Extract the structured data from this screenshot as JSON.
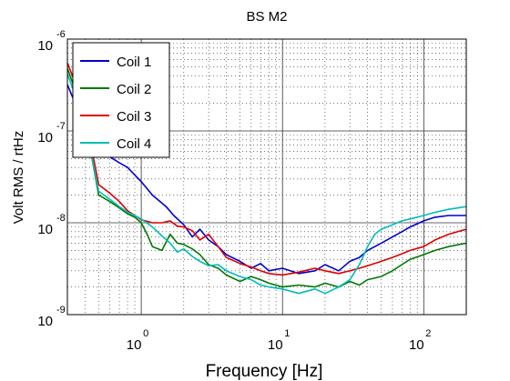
{
  "chart_data": {
    "type": "line",
    "title": "BS M2",
    "xlabel": "Frequency [Hz]",
    "ylabel": "Volt RMS / rtHz",
    "x_scale": "log",
    "y_scale": "log",
    "xlim": [
      0.3,
      200
    ],
    "ylim": [
      1e-09,
      1e-06
    ],
    "x_ticks": [
      {
        "value": 1,
        "base": "10",
        "exp": "0"
      },
      {
        "value": 10,
        "base": "10",
        "exp": "1"
      },
      {
        "value": 100,
        "base": "10",
        "exp": "2"
      }
    ],
    "y_ticks": [
      {
        "value": 1e-09,
        "base": "10",
        "exp": "-9"
      },
      {
        "value": 1e-08,
        "base": "10",
        "exp": "-8"
      },
      {
        "value": 1e-07,
        "base": "10",
        "exp": "-7"
      },
      {
        "value": 1e-06,
        "base": "10",
        "exp": "-6"
      }
    ],
    "grid": true,
    "minor_grid": true,
    "legend_position": "top-left",
    "series": [
      {
        "name": "Coil 1",
        "color": "#0000cc",
        "points": [
          [
            0.3,
            3.2e-07
          ],
          [
            0.35,
            1.8e-07
          ],
          [
            0.4,
            1.1e-07
          ],
          [
            0.5,
            7e-08
          ],
          [
            0.6,
            5.2e-08
          ],
          [
            0.7,
            4.5e-08
          ],
          [
            0.8,
            4e-08
          ],
          [
            1.0,
            2.8e-08
          ],
          [
            1.2,
            2e-08
          ],
          [
            1.5,
            1.5e-08
          ],
          [
            1.7,
            1.2e-08
          ],
          [
            2.0,
            9.5e-09
          ],
          [
            2.3,
            7e-09
          ],
          [
            2.6,
            8.5e-09
          ],
          [
            3.0,
            6.5e-09
          ],
          [
            3.5,
            5.5e-09
          ],
          [
            4,
            4.5e-09
          ],
          [
            5,
            3.8e-09
          ],
          [
            6,
            3.2e-09
          ],
          [
            7,
            3.6e-09
          ],
          [
            8,
            3e-09
          ],
          [
            10,
            3.2e-09
          ],
          [
            13,
            2.8e-09
          ],
          [
            17,
            3e-09
          ],
          [
            20,
            3.5e-09
          ],
          [
            25,
            3e-09
          ],
          [
            30,
            3.8e-09
          ],
          [
            35,
            4.2e-09
          ],
          [
            40,
            5e-09
          ],
          [
            50,
            6e-09
          ],
          [
            60,
            7e-09
          ],
          [
            70,
            8e-09
          ],
          [
            80,
            9e-09
          ],
          [
            100,
            1.05e-08
          ],
          [
            120,
            1.15e-08
          ],
          [
            150,
            1.2e-08
          ],
          [
            200,
            1.2e-08
          ]
        ]
      },
      {
        "name": "Coil 2",
        "color": "#007700",
        "points": [
          [
            0.3,
            4.8e-07
          ],
          [
            0.35,
            2.5e-07
          ],
          [
            0.4,
            1.3e-07
          ],
          [
            0.5,
            2e-08
          ],
          [
            0.6,
            1.7e-08
          ],
          [
            0.7,
            1.45e-08
          ],
          [
            0.8,
            1.25e-08
          ],
          [
            0.9,
            1.15e-08
          ],
          [
            1.0,
            1e-08
          ],
          [
            1.1,
            7.5e-09
          ],
          [
            1.2,
            5.5e-09
          ],
          [
            1.4,
            5e-09
          ],
          [
            1.6,
            7.5e-09
          ],
          [
            1.8,
            6e-09
          ],
          [
            2.0,
            5.8e-09
          ],
          [
            2.3,
            5.2e-09
          ],
          [
            2.6,
            4.5e-09
          ],
          [
            3.0,
            3.5e-09
          ],
          [
            3.5,
            3.2e-09
          ],
          [
            4,
            2.7e-09
          ],
          [
            5,
            2.3e-09
          ],
          [
            6,
            2.6e-09
          ],
          [
            7,
            2.4e-09
          ],
          [
            8,
            2.2e-09
          ],
          [
            10,
            2e-09
          ],
          [
            13,
            2.1e-09
          ],
          [
            17,
            2e-09
          ],
          [
            20,
            2.2e-09
          ],
          [
            25,
            2e-09
          ],
          [
            30,
            2.3e-09
          ],
          [
            35,
            2.1e-09
          ],
          [
            40,
            2.4e-09
          ],
          [
            50,
            2.6e-09
          ],
          [
            60,
            3e-09
          ],
          [
            70,
            3.5e-09
          ],
          [
            80,
            4e-09
          ],
          [
            100,
            4.5e-09
          ],
          [
            120,
            5e-09
          ],
          [
            150,
            5.5e-09
          ],
          [
            200,
            6e-09
          ]
        ]
      },
      {
        "name": "Coil 3",
        "color": "#dd0000",
        "points": [
          [
            0.3,
            5.5e-07
          ],
          [
            0.35,
            3e-07
          ],
          [
            0.4,
            1.5e-07
          ],
          [
            0.5,
            2.6e-08
          ],
          [
            0.6,
            2.1e-08
          ],
          [
            0.7,
            1.7e-08
          ],
          [
            0.8,
            1.35e-08
          ],
          [
            0.9,
            1.2e-08
          ],
          [
            1.0,
            1.08e-08
          ],
          [
            1.2,
            1e-08
          ],
          [
            1.4,
            1e-08
          ],
          [
            1.6,
            1.05e-08
          ],
          [
            1.8,
            9.2e-09
          ],
          [
            2.0,
            9e-09
          ],
          [
            2.3,
            8.2e-09
          ],
          [
            2.6,
            6.5e-09
          ],
          [
            3.0,
            7.5e-09
          ],
          [
            3.5,
            5.5e-09
          ],
          [
            4,
            4.2e-09
          ],
          [
            5,
            3.6e-09
          ],
          [
            6,
            3.3e-09
          ],
          [
            7,
            3e-09
          ],
          [
            8,
            2.8e-09
          ],
          [
            10,
            2.7e-09
          ],
          [
            13,
            2.9e-09
          ],
          [
            17,
            3.2e-09
          ],
          [
            20,
            3e-09
          ],
          [
            25,
            2.8e-09
          ],
          [
            30,
            3e-09
          ],
          [
            35,
            3.2e-09
          ],
          [
            40,
            3.4e-09
          ],
          [
            50,
            3.8e-09
          ],
          [
            60,
            4.2e-09
          ],
          [
            70,
            4.6e-09
          ],
          [
            80,
            5e-09
          ],
          [
            100,
            5.5e-09
          ],
          [
            120,
            6.5e-09
          ],
          [
            150,
            7.5e-09
          ],
          [
            200,
            8.5e-09
          ]
        ]
      },
      {
        "name": "Coil 4",
        "color": "#00bbbb",
        "points": [
          [
            0.3,
            4.2e-07
          ],
          [
            0.35,
            2.2e-07
          ],
          [
            0.4,
            1.2e-07
          ],
          [
            0.5,
            2.2e-08
          ],
          [
            0.6,
            1.8e-08
          ],
          [
            0.7,
            1.5e-08
          ],
          [
            0.8,
            1.3e-08
          ],
          [
            0.9,
            1.2e-08
          ],
          [
            1.0,
            1.1e-08
          ],
          [
            1.2,
            9e-09
          ],
          [
            1.4,
            7.2e-09
          ],
          [
            1.6,
            6e-09
          ],
          [
            1.8,
            4.8e-09
          ],
          [
            2.0,
            5.2e-09
          ],
          [
            2.3,
            4.3e-09
          ],
          [
            2.6,
            3.8e-09
          ],
          [
            3.0,
            3.4e-09
          ],
          [
            3.5,
            3.5e-09
          ],
          [
            4,
            3e-09
          ],
          [
            5,
            2.6e-09
          ],
          [
            6,
            2.4e-09
          ],
          [
            7,
            2.1e-09
          ],
          [
            8,
            2e-09
          ],
          [
            10,
            1.9e-09
          ],
          [
            13,
            1.7e-09
          ],
          [
            17,
            1.9e-09
          ],
          [
            20,
            1.7e-09
          ],
          [
            25,
            2e-09
          ],
          [
            30,
            2.4e-09
          ],
          [
            35,
            3.5e-09
          ],
          [
            40,
            5.5e-09
          ],
          [
            45,
            7.5e-09
          ],
          [
            50,
            8.5e-09
          ],
          [
            60,
            9.5e-09
          ],
          [
            70,
            1.05e-08
          ],
          [
            80,
            1.1e-08
          ],
          [
            100,
            1.2e-08
          ],
          [
            120,
            1.3e-08
          ],
          [
            150,
            1.4e-08
          ],
          [
            200,
            1.5e-08
          ]
        ]
      }
    ]
  }
}
